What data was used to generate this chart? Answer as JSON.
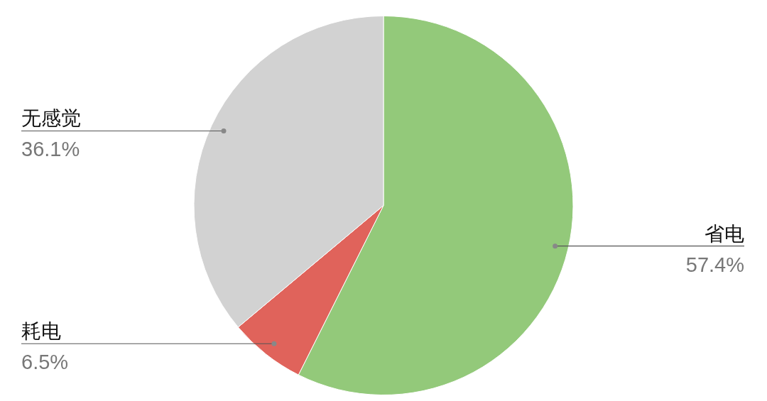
{
  "chart_data": {
    "type": "pie",
    "categories": [
      "省电",
      "耗电",
      "无感觉"
    ],
    "values": [
      57.4,
      6.5,
      36.1
    ],
    "colors": [
      "#93c97a",
      "#e0635b",
      "#d2d2d2"
    ],
    "value_labels": [
      "57.4%",
      "6.5%",
      "36.1%"
    ],
    "legend": false
  }
}
